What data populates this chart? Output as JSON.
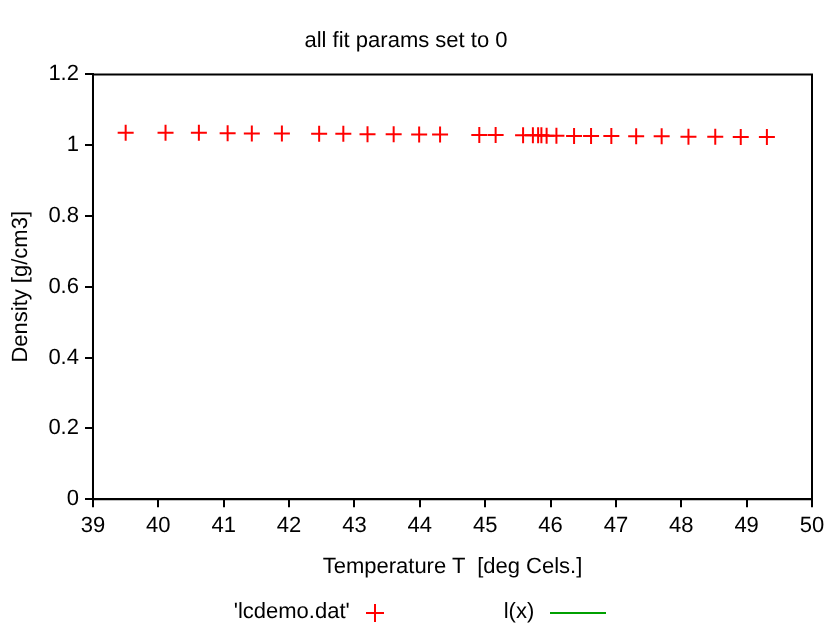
{
  "chart_data": {
    "type": "scatter",
    "title": "all fit params set to 0",
    "xlabel": "Temperature T  [deg Cels.]",
    "ylabel": "Density [g/cm3]",
    "xlim": [
      39,
      50
    ],
    "xticks": [
      39,
      40,
      41,
      42,
      43,
      44,
      45,
      46,
      47,
      48,
      49,
      50
    ],
    "ylim": [
      0,
      1.2
    ],
    "yticks": [
      0,
      0.2,
      0.4,
      0.6,
      0.8,
      1,
      1.2
    ],
    "grid": false,
    "legend": "bottom",
    "marker": "cross",
    "series": [
      {
        "name": "'lcdemo.dat'",
        "color": "#ff0000",
        "x": [
          39.5,
          40.11,
          40.62,
          41.06,
          41.43,
          41.89,
          42.46,
          42.83,
          43.2,
          43.6,
          43.99,
          44.31,
          44.91,
          45.16,
          45.58,
          45.73,
          45.81,
          45.86,
          45.94,
          46.09,
          46.36,
          46.62,
          46.93,
          47.31,
          47.7,
          48.11,
          48.52,
          48.91,
          49.31
        ],
        "values": [
          1.035,
          1.035,
          1.035,
          1.034,
          1.033,
          1.033,
          1.032,
          1.032,
          1.031,
          1.031,
          1.03,
          1.03,
          1.029,
          1.029,
          1.028,
          1.028,
          1.028,
          1.028,
          1.027,
          1.027,
          1.026,
          1.026,
          1.026,
          1.025,
          1.025,
          1.024,
          1.024,
          1.023,
          1.023
        ]
      },
      {
        "name": "l(x)",
        "type": "line",
        "color": "#00a000"
      }
    ]
  }
}
